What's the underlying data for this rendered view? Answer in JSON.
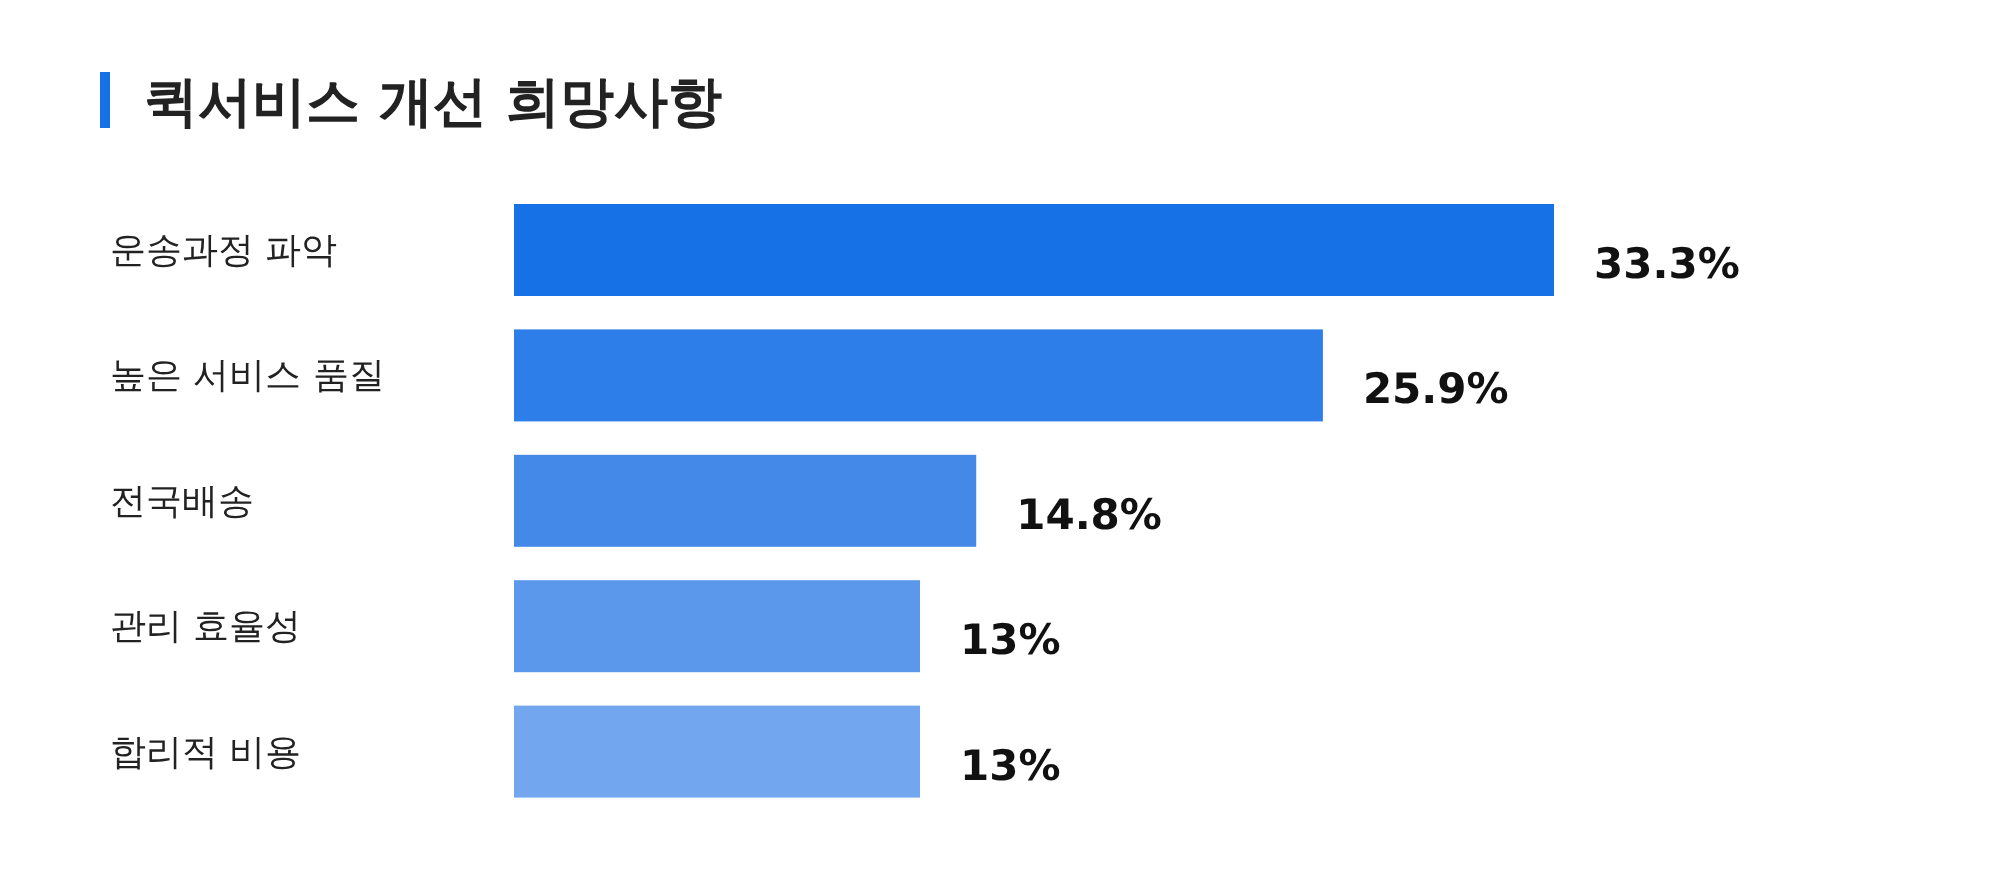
{
  "chart_data": {
    "type": "bar",
    "orientation": "horizontal",
    "title": "퀵서비스 개선 희망사항",
    "categories": [
      "운송과정 파악",
      "높은 서비스 품질",
      "전국배송",
      "관리 효율성",
      "합리적 비용"
    ],
    "values": [
      33.3,
      25.9,
      14.8,
      13,
      13
    ],
    "colors": [
      "#1670e6",
      "#2d7ee8",
      "#4589e8",
      "#5b98ec",
      "#72a7ef"
    ],
    "value_labels": [
      "33.3%",
      "25.9%",
      "14.8%",
      "13%",
      "13%"
    ]
  }
}
